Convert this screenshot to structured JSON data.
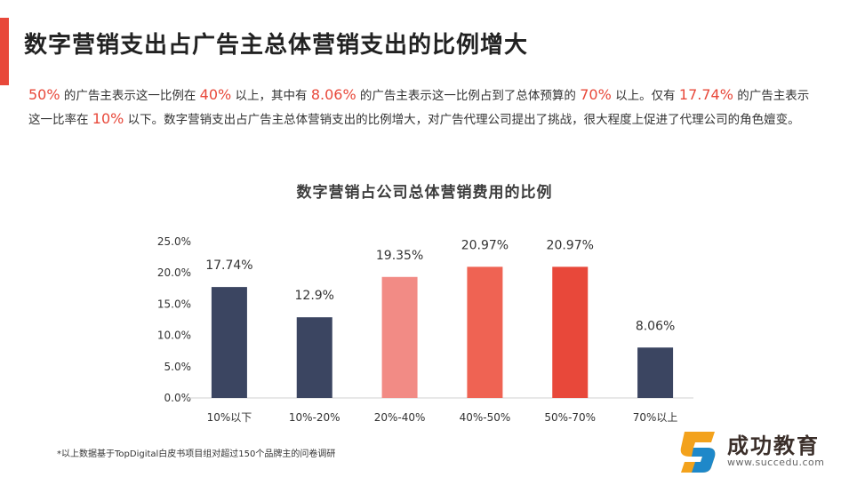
{
  "page": {
    "title": "数字营销支出占广告主总体营销支出的比例增大",
    "description": [
      {
        "text": "50%",
        "highlight": true
      },
      {
        "text": " 的广告主表示这一比例在 ",
        "highlight": false
      },
      {
        "text": "40%",
        "highlight": true
      },
      {
        "text": " 以上，其中有 ",
        "highlight": false
      },
      {
        "text": "8.06%",
        "highlight": true
      },
      {
        "text": " 的广告主表示这一比例占到了总体预算的 ",
        "highlight": false
      },
      {
        "text": "70%",
        "highlight": true
      },
      {
        "text": " 以上。仅有 ",
        "highlight": false
      },
      {
        "text": "17.74%",
        "highlight": true
      },
      {
        "text": " 的广告主表示这一比率在 ",
        "highlight": false
      },
      {
        "text": "10%",
        "highlight": true
      },
      {
        "text": " 以下。数字营销支出占广告主总体营销支出的比例增大，对广告代理公司提出了挑战，很大程度上促进了代理公司的角色嬗变。",
        "highlight": false
      }
    ],
    "footnote": "*以上数据基于TopDigital白皮书项目组对超过150个品牌主的问卷调研",
    "logo": {
      "name": "成功教育",
      "url": "www.succedu.com"
    },
    "colors": {
      "accent": "#e8483a",
      "navy": "#3b4561"
    }
  },
  "chart_data": {
    "type": "bar",
    "title": "数字营销占公司总体营销费用的比例",
    "categories": [
      "10%以下",
      "10%-20%",
      "20%-40%",
      "40%-50%",
      "50%-70%",
      "70%以上"
    ],
    "values": [
      17.74,
      12.9,
      19.35,
      20.97,
      20.97,
      8.06
    ],
    "value_labels": [
      "17.74%",
      "12.9%",
      "19.35%",
      "20.97%",
      "20.97%",
      "8.06%"
    ],
    "bar_colors": [
      "#3b4561",
      "#3b4561",
      "#f28b85",
      "#ef6353",
      "#e8483a",
      "#3b4561"
    ],
    "y_ticks": [
      "0.0%",
      "5.0%",
      "10.0%",
      "15.0%",
      "20.0%",
      "25.0%"
    ],
    "ylim": [
      0,
      25
    ],
    "grid": false,
    "legend": "none"
  }
}
